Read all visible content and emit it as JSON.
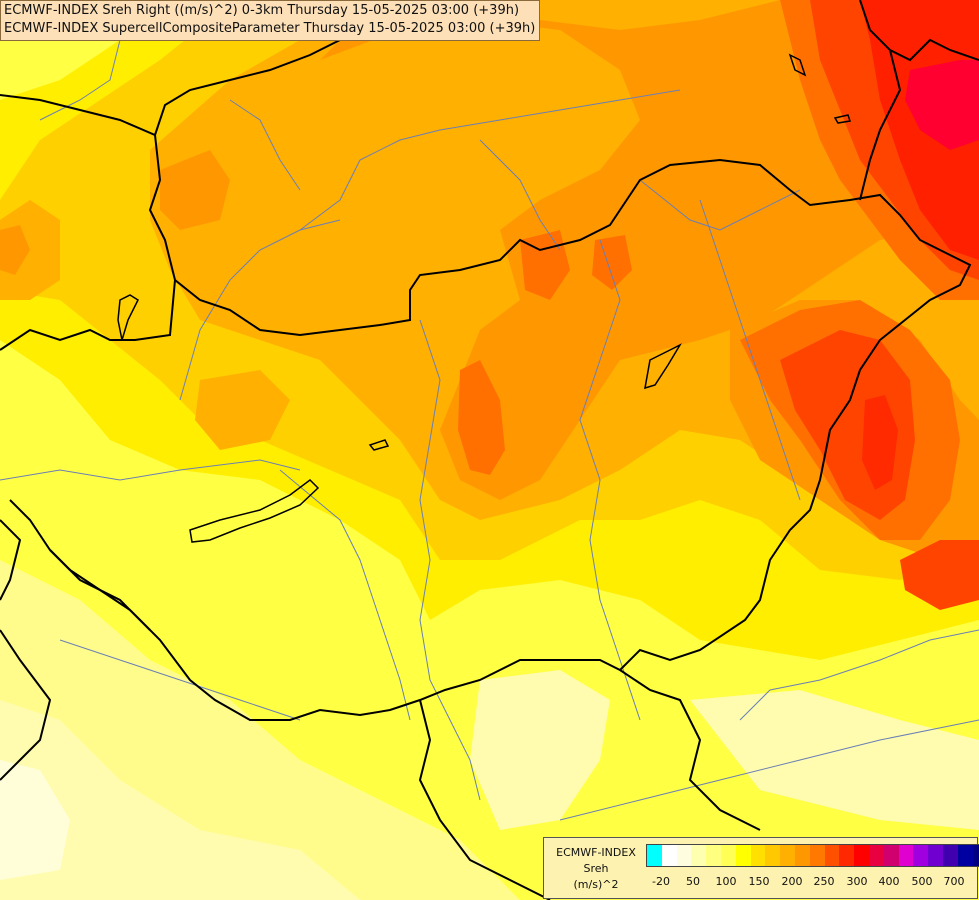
{
  "header": {
    "line1": "ECMWF-INDEX Sreh Right ((m/s)^2) 0-3km Thursday 15-05-2025 03:00 (+39h)",
    "line2": "ECMWF-INDEX SupercellCompositeParameter Thursday 15-05-2025 03:00 (+39h)"
  },
  "legend": {
    "line1": "ECMWF-INDEX",
    "line2": "Sreh",
    "line3": "(m/s)^2",
    "colors": [
      "#00ffff",
      "#ffffff",
      "#fffde0",
      "#ffffb0",
      "#ffff80",
      "#ffff55",
      "#ffff00",
      "#ffe000",
      "#ffc800",
      "#ffb000",
      "#ff9800",
      "#ff7800",
      "#ff5000",
      "#ff2800",
      "#ff0000",
      "#e80040",
      "#d0006e",
      "#e000d0",
      "#a000e0",
      "#7000d0",
      "#4000b0",
      "#0000a0",
      "#000080"
    ],
    "ticks": [
      "-20",
      "50",
      "100",
      "150",
      "200",
      "250",
      "300",
      "400",
      "500",
      "700"
    ]
  },
  "colors": {
    "border": "#000000",
    "river": "#6a7fb5"
  }
}
